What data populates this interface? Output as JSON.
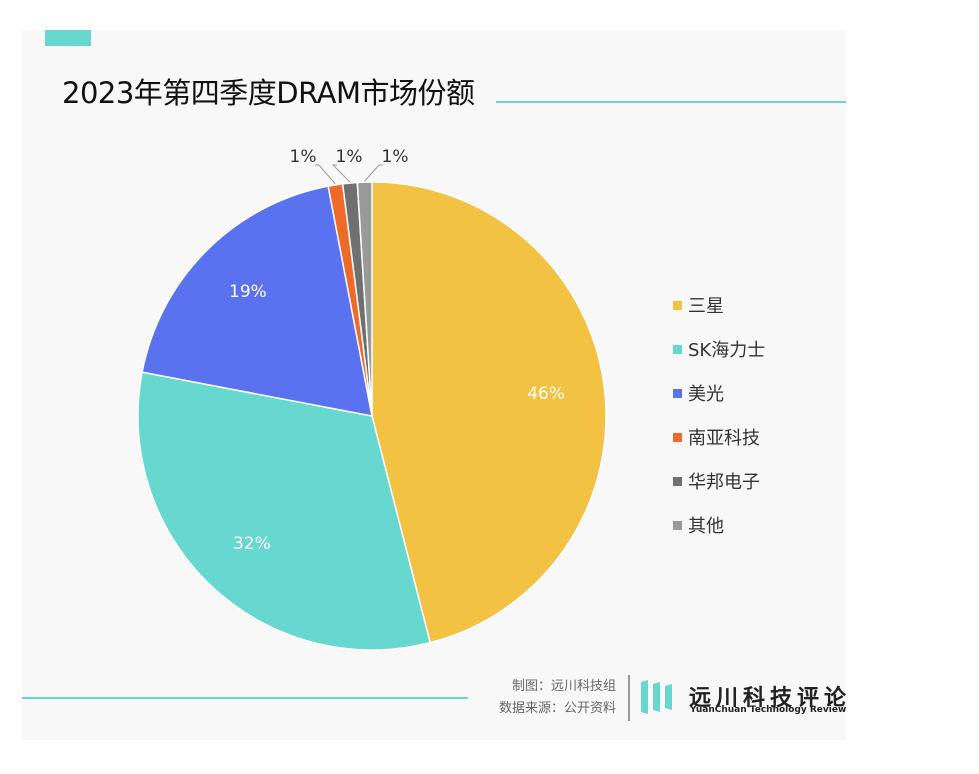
{
  "title": "2023年第四季度DRAM市场份额",
  "chart_data": {
    "type": "pie",
    "title": "2023年第四季度DRAM市场份额",
    "categories": [
      "三星",
      "SK海力士",
      "美光",
      "南亚科技",
      "华邦电子",
      "其他"
    ],
    "values": [
      46,
      32,
      19,
      1,
      1,
      1
    ],
    "value_labels": [
      "46%",
      "32%",
      "19%",
      "1%",
      "1%",
      "1%"
    ],
    "colors": [
      "#f4c242",
      "#67d8cf",
      "#5b72f0",
      "#ef6a28",
      "#707070",
      "#9a9a9a"
    ],
    "legend_position": "right"
  },
  "legend": [
    {
      "label": "三星",
      "color": "#f4c242"
    },
    {
      "label": "SK海力士",
      "color": "#67d8cf"
    },
    {
      "label": "美光",
      "color": "#5b72f0"
    },
    {
      "label": "南亚科技",
      "color": "#ef6a28"
    },
    {
      "label": "华邦电子",
      "color": "#707070"
    },
    {
      "label": "其他",
      "color": "#9a9a9a"
    }
  ],
  "footer": {
    "credit": "制图：远川科技组",
    "source": "数据来源：公开资料",
    "brand_cn": "远川科技评论",
    "brand_en": "YuanChuan Technology Review"
  },
  "colors": {
    "accent": "#67d8cf"
  }
}
